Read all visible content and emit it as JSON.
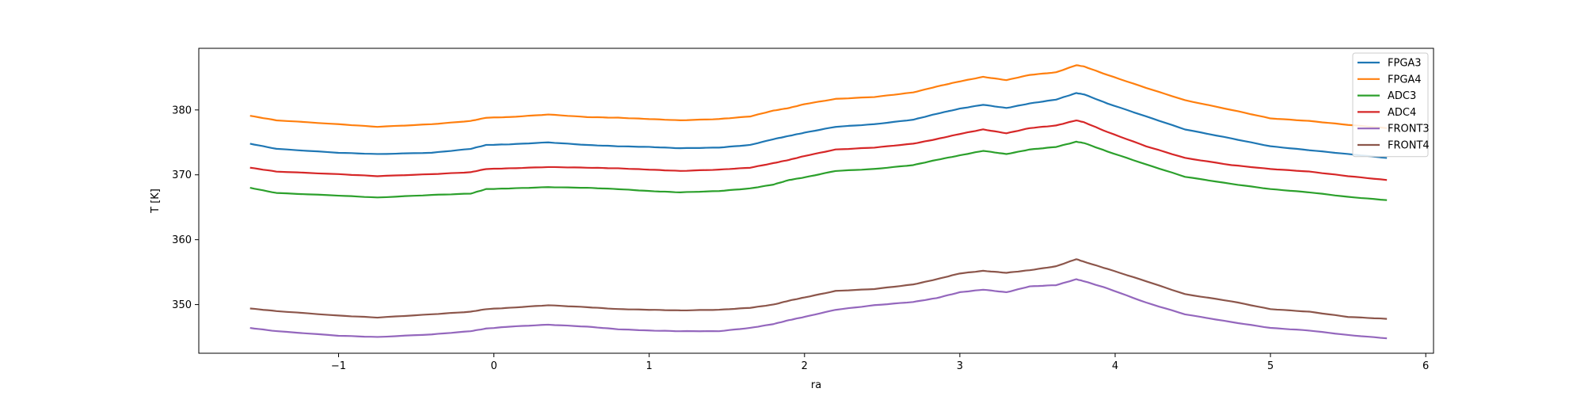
{
  "chart_data": {
    "type": "line",
    "title": "",
    "xlabel": "ra",
    "ylabel": "T [K]",
    "xlim": [
      -1.9,
      6.05
    ],
    "ylim": [
      342.5,
      389.5
    ],
    "xticks": [
      -1,
      0,
      1,
      2,
      3,
      4,
      5,
      6
    ],
    "xtick_labels": [
      "−1",
      "0",
      "1",
      "2",
      "3",
      "4",
      "5",
      "6"
    ],
    "yticks": [
      350,
      360,
      370,
      380
    ],
    "ytick_labels": [
      "350",
      "360",
      "370",
      "380"
    ],
    "grid": false,
    "legend_position": "upper right",
    "x": [
      -1.57,
      -1.4,
      -1.0,
      -0.75,
      -0.4,
      -0.15,
      -0.05,
      0.1,
      0.35,
      0.6,
      0.8,
      1.0,
      1.2,
      1.45,
      1.65,
      1.8,
      1.9,
      2.0,
      2.2,
      2.45,
      2.7,
      2.85,
      3.0,
      3.15,
      3.3,
      3.45,
      3.62,
      3.75,
      3.8,
      3.95,
      4.2,
      4.45,
      4.75,
      5.0,
      5.25,
      5.5,
      5.75
    ],
    "series": [
      {
        "name": "FPGA3",
        "color": "#1f77b4",
        "values": [
          374.8,
          374.0,
          373.4,
          373.2,
          373.4,
          374.0,
          374.6,
          374.7,
          375.0,
          374.6,
          374.4,
          374.3,
          374.1,
          374.2,
          374.6,
          375.5,
          376.0,
          376.5,
          377.4,
          377.8,
          378.5,
          379.4,
          380.2,
          380.8,
          380.3,
          381.0,
          381.6,
          382.6,
          382.4,
          381.0,
          379.0,
          377.0,
          375.6,
          374.4,
          373.8,
          373.2,
          372.6
        ]
      },
      {
        "name": "FPGA4",
        "color": "#ff7f0e",
        "values": [
          379.1,
          378.4,
          377.8,
          377.4,
          377.8,
          378.3,
          378.8,
          378.9,
          379.3,
          378.9,
          378.8,
          378.6,
          378.4,
          378.6,
          379.0,
          379.9,
          380.3,
          380.9,
          381.7,
          382.0,
          382.7,
          383.6,
          384.4,
          385.1,
          384.6,
          385.4,
          385.8,
          386.9,
          386.7,
          385.4,
          383.4,
          381.5,
          380.0,
          378.7,
          378.3,
          377.7,
          377.2
        ]
      },
      {
        "name": "ADC3",
        "color": "#2ca02c",
        "values": [
          368.0,
          367.2,
          366.8,
          366.5,
          366.9,
          367.1,
          367.8,
          367.9,
          368.1,
          368.0,
          367.8,
          367.5,
          367.3,
          367.5,
          367.9,
          368.5,
          369.2,
          369.6,
          370.6,
          370.9,
          371.5,
          372.3,
          373.0,
          373.7,
          373.2,
          373.9,
          374.3,
          375.1,
          374.9,
          373.6,
          371.6,
          369.7,
          368.6,
          367.8,
          367.3,
          366.6,
          366.1
        ]
      },
      {
        "name": "ADC4",
        "color": "#d62728",
        "values": [
          371.1,
          370.5,
          370.1,
          369.8,
          370.1,
          370.4,
          370.9,
          371.0,
          371.2,
          371.1,
          371.0,
          370.8,
          370.6,
          370.8,
          371.1,
          371.8,
          372.3,
          372.9,
          373.9,
          374.2,
          374.8,
          375.5,
          376.3,
          377.0,
          376.4,
          377.2,
          377.6,
          378.4,
          378.1,
          376.6,
          374.4,
          372.6,
          371.5,
          370.9,
          370.5,
          369.8,
          369.2
        ]
      },
      {
        "name": "FRONT3",
        "color": "#9467bd",
        "values": [
          346.4,
          345.9,
          345.2,
          345.0,
          345.4,
          345.9,
          346.3,
          346.6,
          346.9,
          346.6,
          346.2,
          346.0,
          345.9,
          345.9,
          346.4,
          347.0,
          347.6,
          348.1,
          349.2,
          349.9,
          350.4,
          351.0,
          351.9,
          352.3,
          351.9,
          352.8,
          353.0,
          353.9,
          353.6,
          352.5,
          350.3,
          348.5,
          347.3,
          346.4,
          346.0,
          345.3,
          344.8
        ]
      },
      {
        "name": "FRONT4",
        "color": "#8c564b",
        "values": [
          349.4,
          349.0,
          348.3,
          348.0,
          348.5,
          348.9,
          349.3,
          349.5,
          349.9,
          349.6,
          349.3,
          349.2,
          349.1,
          349.2,
          349.5,
          350.0,
          350.6,
          351.1,
          352.1,
          352.4,
          353.1,
          353.9,
          354.8,
          355.2,
          354.9,
          355.3,
          355.9,
          357.0,
          356.6,
          355.5,
          353.6,
          351.6,
          350.5,
          349.3,
          348.9,
          348.1,
          347.8
        ]
      }
    ]
  }
}
